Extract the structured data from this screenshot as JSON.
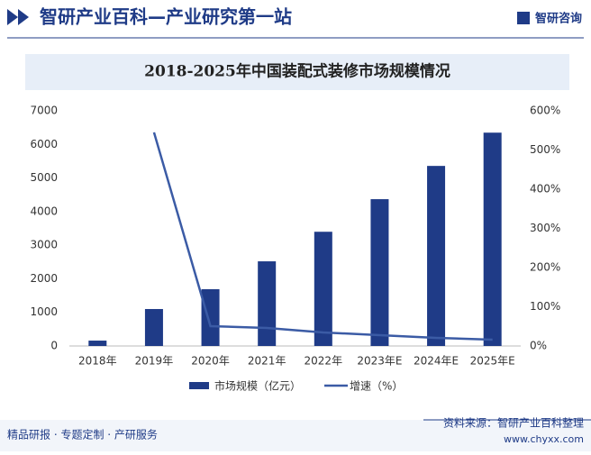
{
  "header": {
    "title": "智研产业百科—产业研究第一站",
    "logo": "智研咨询"
  },
  "chart_data": {
    "type": "bar",
    "title": "2018-2025年中国装配式装修市场规模情况",
    "categories": [
      "2018年",
      "2019年",
      "2020年",
      "2021年",
      "2022年",
      "2023年E",
      "2024年E",
      "2025年E"
    ],
    "series": [
      {
        "name": "市场规模（亿元）",
        "type": "bar",
        "color": "#1f3b87",
        "values": [
          160,
          1100,
          1690,
          2520,
          3400,
          4370,
          5360,
          6350
        ]
      },
      {
        "name": "增速（%）",
        "type": "line",
        "axis": "y2",
        "color": "#3b5ba5",
        "values": [
          null,
          545,
          50.6,
          46,
          34.5,
          27.6,
          20.7,
          16
        ]
      }
    ],
    "ylim": [
      0,
      7000
    ],
    "yticks": [
      0,
      1000,
      2000,
      3000,
      4000,
      5000,
      6000,
      7000
    ],
    "y2lim": [
      0,
      600
    ],
    "y2ticks": [
      {
        "value": 0,
        "label": "0%"
      },
      {
        "value": 100,
        "label": "100%"
      },
      {
        "value": 200,
        "label": "200%"
      },
      {
        "value": 300,
        "label": "300%"
      },
      {
        "value": 400,
        "label": "400%"
      },
      {
        "value": 500,
        "label": "500%"
      },
      {
        "value": 600,
        "label": "600%"
      }
    ],
    "legend": "bottom"
  },
  "footer": {
    "left": "精品研报 · 专题定制 · 产研服务",
    "source": "资料来源：智研产业百科整理",
    "site": "www.chyxx.com"
  }
}
